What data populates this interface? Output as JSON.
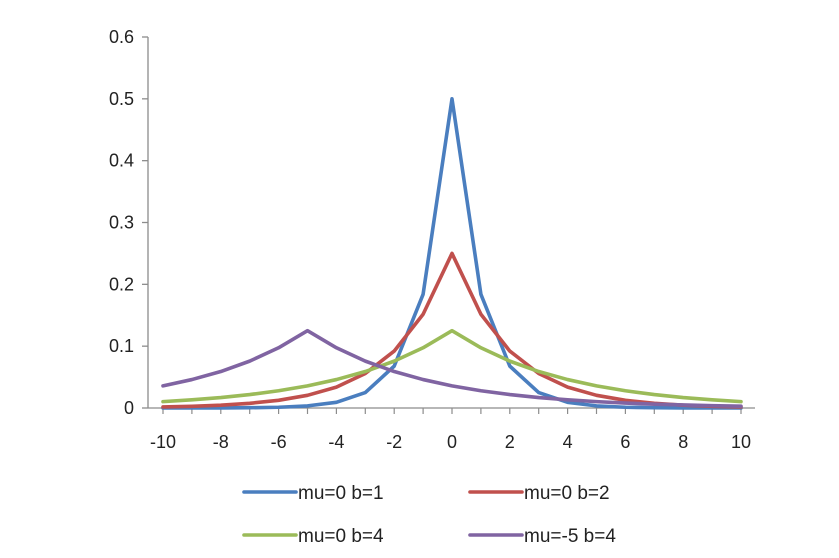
{
  "chart_data": {
    "type": "line",
    "title": "",
    "xlabel": "",
    "ylabel": "",
    "xlim": [
      -10,
      10
    ],
    "ylim": [
      0,
      0.6
    ],
    "x": [
      -10,
      -9,
      -8,
      -7,
      -6,
      -5,
      -4,
      -3,
      -2,
      -1,
      0,
      1,
      2,
      3,
      4,
      5,
      6,
      7,
      8,
      9,
      10
    ],
    "x_ticks": [
      "-10",
      "-8",
      "-6",
      "-4",
      "-2",
      "0",
      "2",
      "4",
      "6",
      "8",
      "10"
    ],
    "x_tick_values": [
      -10,
      -8,
      -6,
      -4,
      -2,
      0,
      2,
      4,
      6,
      8,
      10
    ],
    "y_ticks": [
      "0",
      "0.1",
      "0.2",
      "0.3",
      "0.4",
      "0.5",
      "0.6"
    ],
    "y_tick_values": [
      0,
      0.1,
      0.2,
      0.3,
      0.4,
      0.5,
      0.6
    ],
    "grid": false,
    "legend_position": "bottom",
    "series": [
      {
        "name": "mu=0 b=1",
        "color": "#4a7ebf",
        "values": [
          2.3e-05,
          6.2e-05,
          0.00017,
          0.00046,
          0.0012,
          0.0034,
          0.0092,
          0.0249,
          0.0677,
          0.1839,
          0.5,
          0.1839,
          0.0677,
          0.0249,
          0.0092,
          0.0034,
          0.0012,
          0.00046,
          0.00017,
          6.2e-05,
          2.3e-05
        ]
      },
      {
        "name": "mu=0 b=2",
        "color": "#c0504d",
        "values": [
          0.0017,
          0.0028,
          0.0046,
          0.0076,
          0.0124,
          0.0205,
          0.0338,
          0.0558,
          0.092,
          0.1516,
          0.25,
          0.1516,
          0.092,
          0.0558,
          0.0338,
          0.0205,
          0.0124,
          0.0076,
          0.0046,
          0.0028,
          0.0017
        ]
      },
      {
        "name": "mu=0 b=4",
        "color": "#9bbb59",
        "values": [
          0.0103,
          0.0132,
          0.0169,
          0.0217,
          0.0279,
          0.0358,
          0.046,
          0.059,
          0.0758,
          0.0974,
          0.125,
          0.0974,
          0.0758,
          0.059,
          0.046,
          0.0358,
          0.0279,
          0.0217,
          0.0169,
          0.0132,
          0.0103
        ]
      },
      {
        "name": "mu=-5 b=4",
        "color": "#8064a2",
        "values": [
          0.0358,
          0.046,
          0.059,
          0.0758,
          0.0974,
          0.125,
          0.0974,
          0.0758,
          0.059,
          0.046,
          0.0358,
          0.0279,
          0.0217,
          0.0169,
          0.0132,
          0.0103,
          0.008,
          0.0062,
          0.0049,
          0.0038,
          0.003
        ]
      }
    ]
  }
}
